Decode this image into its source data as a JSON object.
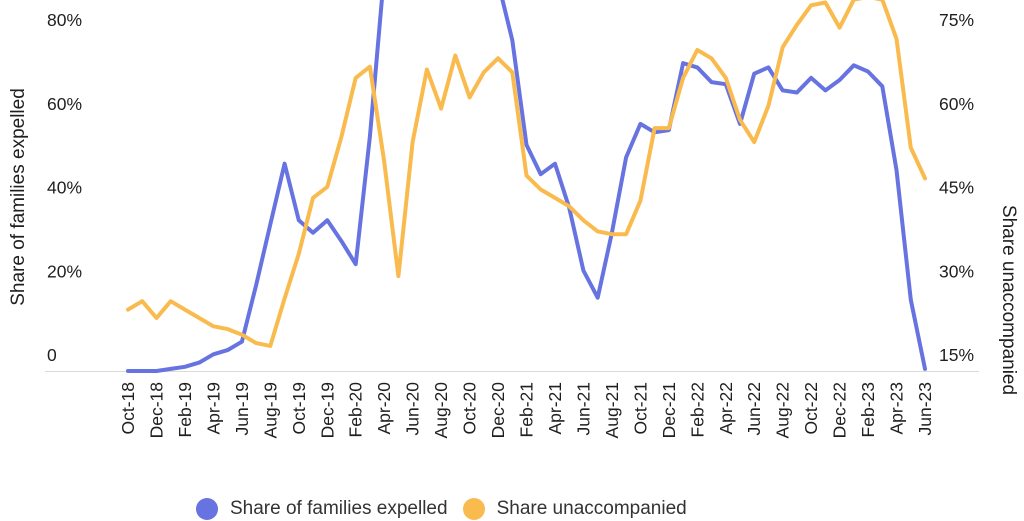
{
  "chart_data": {
    "type": "line",
    "x": [
      "Oct-18",
      "Nov-18",
      "Dec-18",
      "Jan-19",
      "Feb-19",
      "Mar-19",
      "Apr-19",
      "May-19",
      "Jun-19",
      "Jul-19",
      "Aug-19",
      "Sep-19",
      "Oct-19",
      "Nov-19",
      "Dec-19",
      "Jan-20",
      "Feb-20",
      "Mar-20",
      "Apr-20",
      "May-20",
      "Jun-20",
      "Jul-20",
      "Aug-20",
      "Sep-20",
      "Oct-20",
      "Nov-20",
      "Dec-20",
      "Jan-21",
      "Feb-21",
      "Mar-21",
      "Apr-21",
      "May-21",
      "Jun-21",
      "Jul-21",
      "Aug-21",
      "Sep-21",
      "Oct-21",
      "Nov-21",
      "Dec-21",
      "Jan-22",
      "Feb-22",
      "Mar-22",
      "Apr-22",
      "May-22",
      "Jun-22",
      "Jul-22",
      "Aug-22",
      "Sep-22",
      "Oct-22",
      "Nov-22",
      "Dec-22",
      "Jan-23",
      "Feb-23",
      "Mar-23",
      "Apr-23",
      "May-23",
      "Jun-23"
    ],
    "x_tick_labels": [
      "Oct-18",
      "Dec-18",
      "Feb-19",
      "Apr-19",
      "Jun-19",
      "Aug-19",
      "Oct-19",
      "Dec-19",
      "Feb-20",
      "Apr-20",
      "Jun-20",
      "Aug-20",
      "Oct-20",
      "Dec-20",
      "Feb-21",
      "Apr-21",
      "Jun-21",
      "Aug-21",
      "Oct-21",
      "Dec-21",
      "Feb-22",
      "Apr-22",
      "Jun-22",
      "Aug-22",
      "Oct-22",
      "Dec-22",
      "Feb-23",
      "Apr-23",
      "Jun-23"
    ],
    "series": [
      {
        "name": "Share of families expelled",
        "axis": "left",
        "color": "#6673e0",
        "values": [
          0,
          0,
          0,
          0.5,
          1,
          2,
          4,
          5,
          7,
          20.5,
          35,
          49.5,
          36,
          33,
          36,
          31,
          25.5,
          56,
          95,
          97,
          97,
          96,
          96,
          95,
          95,
          94,
          93,
          79,
          54,
          47,
          49.5,
          39,
          24,
          17.5,
          33,
          51,
          59,
          57,
          57.5,
          73.5,
          72.5,
          69,
          68.5,
          59,
          71,
          72.5,
          67,
          66.5,
          70,
          67,
          69.5,
          73,
          71.5,
          68,
          48,
          17,
          0.5
        ]
      },
      {
        "name": "Share unaccompanied",
        "axis": "right",
        "color": "#f9ba4e",
        "values": [
          26,
          27.5,
          24.5,
          27.5,
          26,
          24.5,
          23,
          22.5,
          21.5,
          20,
          19.5,
          28,
          36,
          46,
          48,
          57,
          67.5,
          69.5,
          52.5,
          32,
          56,
          69,
          62,
          71.5,
          64,
          68.5,
          71,
          68.5,
          50,
          47.5,
          46,
          44.5,
          42,
          40,
          39.5,
          39.5,
          45.5,
          58.5,
          58.5,
          67.5,
          72.5,
          71,
          67.5,
          60,
          56,
          62.5,
          73,
          77,
          80.5,
          81,
          76.5,
          81.5,
          82,
          81.5,
          74.5,
          55,
          49.5
        ]
      }
    ],
    "left_axis": {
      "title": "Share of families expelled",
      "tick_labels": [
        "80%",
        "60%",
        "40%",
        "20%",
        "0"
      ],
      "tick_values": [
        80,
        60,
        40,
        20,
        0
      ]
    },
    "right_axis": {
      "title": "Share unaccompanied",
      "tick_labels": [
        "75%",
        "60%",
        "45%",
        "30%",
        "15%"
      ],
      "tick_values": [
        75,
        60,
        45,
        30,
        15
      ]
    },
    "legend": [
      {
        "label": "Share of families expelled",
        "color": "#6673e0"
      },
      {
        "label": "Share unaccompanied",
        "color": "#f9ba4e"
      }
    ],
    "baseline_color": "#dadada",
    "text_color": "#1f1f1f",
    "notes": "Chart frame is cropped at top; blue series exceeds visible area (clipped above ~88% on left axis) from Apr-2020 through Dec-2020 — those values are estimates. Orange series grazes the top edge around Feb-23. Legend row is cut off by the bottom edge.",
    "grid": "baseline only, no horizontal gridlines"
  }
}
